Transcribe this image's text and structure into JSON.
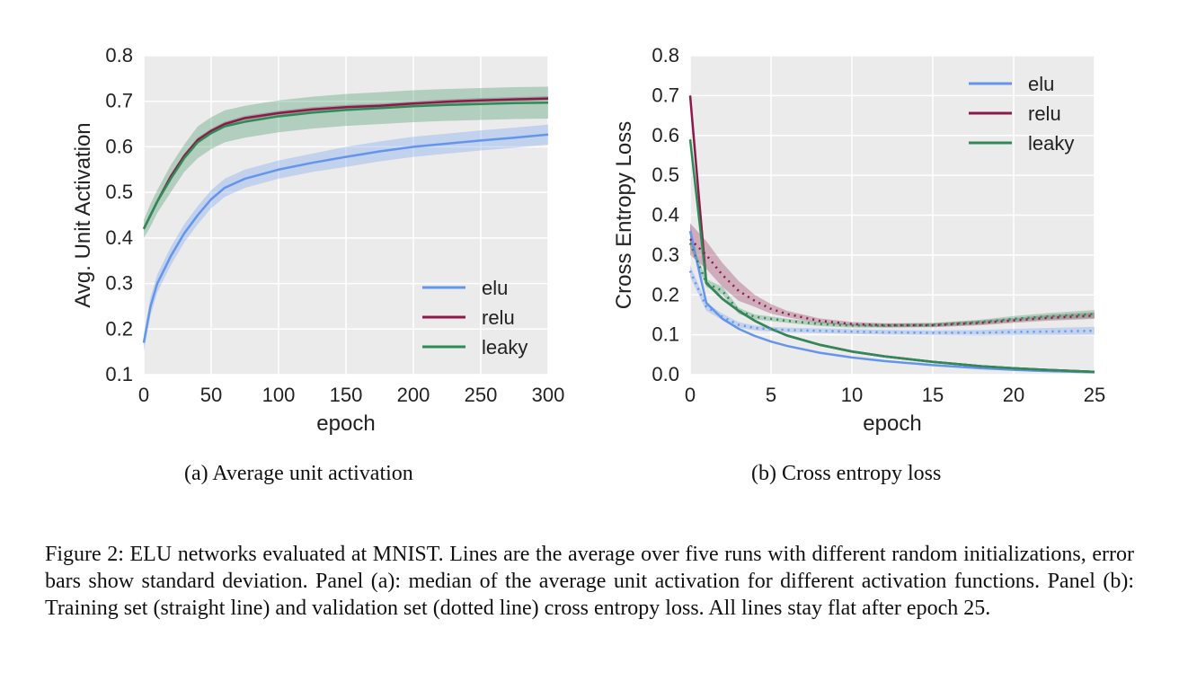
{
  "chart_data": [
    {
      "id": "a",
      "type": "line",
      "title": "",
      "xlabel": "epoch",
      "ylabel": "Avg. Unit Activation",
      "xlim": [
        0,
        300
      ],
      "ylim": [
        0.1,
        0.8
      ],
      "xticks": [
        0,
        50,
        100,
        150,
        200,
        250,
        300
      ],
      "yticks": [
        0.1,
        0.2,
        0.3,
        0.4,
        0.5,
        0.6,
        0.7,
        0.8
      ],
      "grid": true,
      "legend": "bottom-right",
      "series": [
        {
          "name": "elu",
          "color": "#6495ed",
          "style": "solid",
          "x": [
            0,
            5,
            10,
            20,
            30,
            40,
            50,
            60,
            75,
            100,
            125,
            150,
            175,
            200,
            225,
            250,
            275,
            300
          ],
          "y": [
            0.17,
            0.25,
            0.3,
            0.36,
            0.41,
            0.45,
            0.485,
            0.51,
            0.53,
            0.55,
            0.565,
            0.578,
            0.59,
            0.6,
            0.607,
            0.614,
            0.62,
            0.627
          ],
          "band": [
            0.018,
            0.02,
            0.02,
            0.02,
            0.02,
            0.02,
            0.02,
            0.02,
            0.02,
            0.02,
            0.02,
            0.022,
            0.022,
            0.022,
            0.022,
            0.022,
            0.022,
            0.022
          ]
        },
        {
          "name": "relu",
          "color": "#8b1a4a",
          "style": "solid",
          "x": [
            0,
            5,
            10,
            20,
            30,
            40,
            50,
            60,
            75,
            100,
            125,
            150,
            175,
            200,
            225,
            250,
            275,
            300
          ],
          "y": [
            0.42,
            0.45,
            0.48,
            0.535,
            0.58,
            0.615,
            0.635,
            0.65,
            0.663,
            0.674,
            0.682,
            0.687,
            0.69,
            0.695,
            0.699,
            0.702,
            0.704,
            0.706
          ],
          "band": [
            0.005,
            0.005,
            0.005,
            0.005,
            0.005,
            0.005,
            0.005,
            0.005,
            0.005,
            0.005,
            0.005,
            0.005,
            0.005,
            0.005,
            0.005,
            0.005,
            0.005,
            0.005
          ]
        },
        {
          "name": "leaky",
          "color": "#2e8b57",
          "style": "solid",
          "x": [
            0,
            5,
            10,
            20,
            30,
            40,
            50,
            60,
            75,
            100,
            125,
            150,
            175,
            200,
            225,
            250,
            275,
            300
          ],
          "y": [
            0.42,
            0.45,
            0.48,
            0.53,
            0.575,
            0.61,
            0.63,
            0.645,
            0.655,
            0.667,
            0.675,
            0.681,
            0.685,
            0.689,
            0.692,
            0.694,
            0.696,
            0.697
          ],
          "band": [
            0.02,
            0.025,
            0.025,
            0.03,
            0.03,
            0.035,
            0.035,
            0.035,
            0.035,
            0.035,
            0.035,
            0.035,
            0.035,
            0.035,
            0.035,
            0.035,
            0.035,
            0.035
          ]
        }
      ]
    },
    {
      "id": "b",
      "type": "line",
      "title": "",
      "xlabel": "epoch",
      "ylabel": "Cross Entropy Loss",
      "xlim": [
        0,
        25
      ],
      "ylim": [
        0.0,
        0.8
      ],
      "xticks": [
        0,
        5,
        10,
        15,
        20,
        25
      ],
      "yticks": [
        0.0,
        0.1,
        0.2,
        0.3,
        0.4,
        0.5,
        0.6,
        0.7,
        0.8
      ],
      "grid": true,
      "legend": "top-right",
      "series": [
        {
          "name": "elu",
          "color": "#6495ed",
          "style": "solid",
          "x": [
            0,
            1,
            2,
            3,
            4,
            5,
            6,
            8,
            10,
            12,
            15,
            18,
            20,
            22,
            25
          ],
          "y": [
            0.36,
            0.18,
            0.14,
            0.115,
            0.097,
            0.083,
            0.072,
            0.055,
            0.043,
            0.034,
            0.024,
            0.016,
            0.012,
            0.009,
            0.006
          ],
          "band": [
            0.02,
            0.005,
            0.003,
            0.002,
            0.002,
            0.002,
            0.002,
            0.002,
            0.002,
            0.002,
            0.002,
            0.002,
            0.002,
            0.002,
            0.002
          ]
        },
        {
          "name": "relu",
          "color": "#8b1a4a",
          "style": "solid",
          "x": [
            0,
            1,
            2,
            3,
            4,
            5,
            6,
            8,
            10,
            12,
            15,
            18,
            20,
            22,
            25
          ],
          "y": [
            0.7,
            0.23,
            0.19,
            0.16,
            0.135,
            0.115,
            0.098,
            0.075,
            0.058,
            0.046,
            0.032,
            0.021,
            0.016,
            0.012,
            0.007
          ],
          "band": [
            0.01,
            0.005,
            0.003,
            0.003,
            0.003,
            0.003,
            0.003,
            0.003,
            0.003,
            0.003,
            0.003,
            0.003,
            0.003,
            0.003,
            0.003
          ]
        },
        {
          "name": "leaky",
          "color": "#2e8b57",
          "style": "solid",
          "x": [
            0,
            1,
            2,
            3,
            4,
            5,
            6,
            8,
            10,
            12,
            15,
            18,
            20,
            22,
            25
          ],
          "y": [
            0.59,
            0.23,
            0.19,
            0.16,
            0.135,
            0.115,
            0.098,
            0.075,
            0.058,
            0.046,
            0.032,
            0.021,
            0.016,
            0.012,
            0.007
          ],
          "band": [
            0.01,
            0.005,
            0.003,
            0.003,
            0.003,
            0.003,
            0.003,
            0.003,
            0.003,
            0.003,
            0.003,
            0.003,
            0.003,
            0.003,
            0.003
          ]
        },
        {
          "name": "elu (validation)",
          "color": "#6495ed",
          "style": "dotted",
          "x": [
            0,
            1,
            2,
            3,
            4,
            5,
            6,
            8,
            10,
            12,
            15,
            18,
            20,
            22,
            25
          ],
          "y": [
            0.26,
            0.17,
            0.145,
            0.125,
            0.117,
            0.114,
            0.112,
            0.11,
            0.108,
            0.106,
            0.105,
            0.105,
            0.107,
            0.108,
            0.11
          ],
          "band": [
            0.015,
            0.01,
            0.008,
            0.007,
            0.006,
            0.006,
            0.006,
            0.006,
            0.006,
            0.006,
            0.006,
            0.007,
            0.008,
            0.009,
            0.01
          ]
        },
        {
          "name": "relu (validation)",
          "color": "#8b1a4a",
          "style": "dotted",
          "x": [
            0,
            1,
            2,
            3,
            4,
            5,
            6,
            8,
            10,
            12,
            15,
            18,
            20,
            22,
            25
          ],
          "y": [
            0.34,
            0.3,
            0.25,
            0.21,
            0.185,
            0.165,
            0.152,
            0.135,
            0.127,
            0.124,
            0.124,
            0.13,
            0.136,
            0.142,
            0.148
          ],
          "band": [
            0.04,
            0.035,
            0.03,
            0.025,
            0.015,
            0.012,
            0.008,
            0.006,
            0.005,
            0.005,
            0.005,
            0.006,
            0.006,
            0.007,
            0.008
          ]
        },
        {
          "name": "leaky (validation)",
          "color": "#2e8b57",
          "style": "dotted",
          "x": [
            0,
            1,
            2,
            3,
            4,
            5,
            6,
            8,
            10,
            12,
            15,
            18,
            20,
            22,
            25
          ],
          "y": [
            0.33,
            0.23,
            0.21,
            0.16,
            0.145,
            0.14,
            0.135,
            0.127,
            0.123,
            0.123,
            0.125,
            0.132,
            0.14,
            0.146,
            0.152
          ],
          "band": [
            0.01,
            0.01,
            0.01,
            0.008,
            0.006,
            0.006,
            0.005,
            0.005,
            0.005,
            0.005,
            0.005,
            0.006,
            0.007,
            0.008,
            0.01
          ]
        }
      ]
    }
  ],
  "captions": {
    "a": "(a)  Average unit activation",
    "b": "(b)  Cross entropy loss"
  },
  "figure_caption": "Figure 2: ELU networks evaluated at MNIST. Lines are the average over five runs with different random initializations, error bars show standard deviation. Panel (a): median of the average unit activation for different activation functions. Panel (b): Training set (straight line) and validation set (dotted line) cross entropy loss. All lines stay flat after epoch 25."
}
